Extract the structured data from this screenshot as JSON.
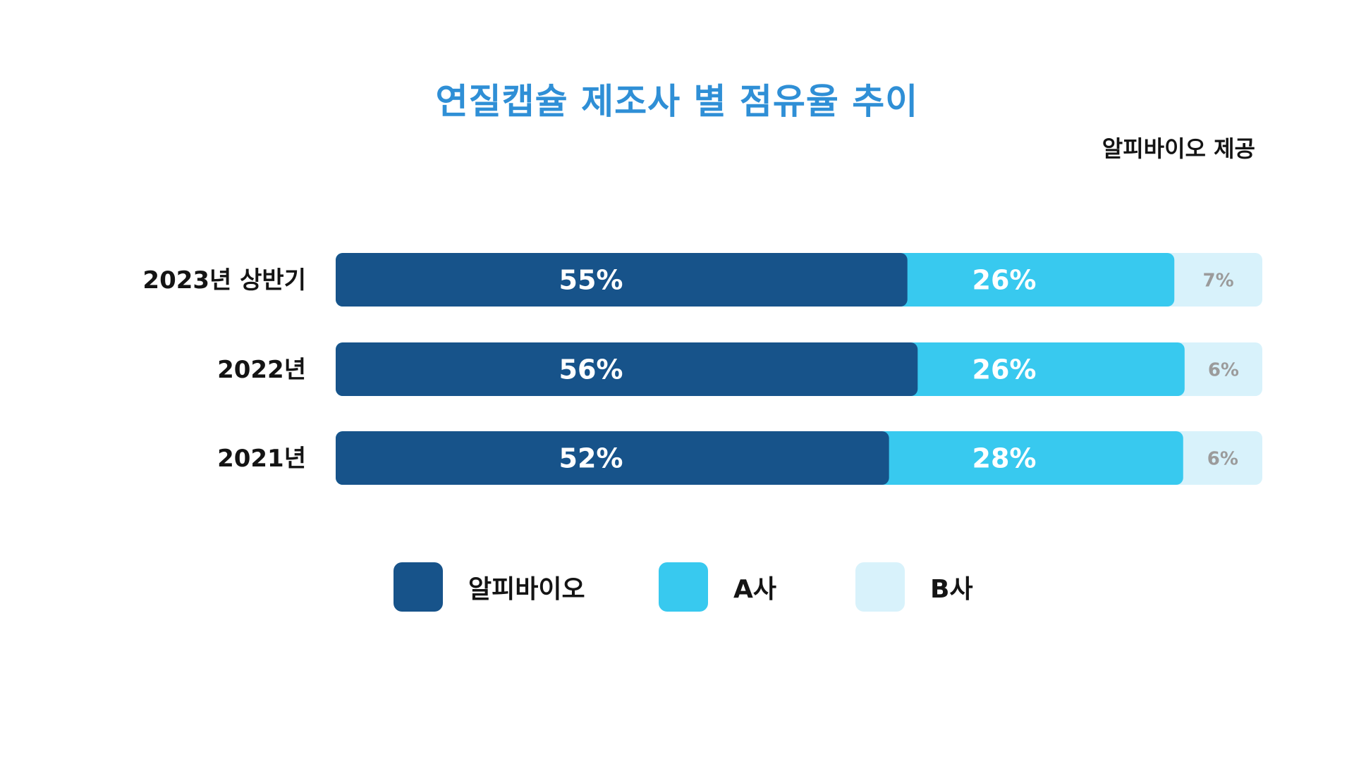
{
  "chart_data": {
    "type": "bar",
    "orientation": "horizontal",
    "stacked": true,
    "title": "연질캡슐 제조사 별 점유율 추이",
    "source_note": "알피바이오 제공",
    "categories": [
      "2023년 상반기",
      "2022년",
      "2021년"
    ],
    "series": [
      {
        "name": "알피바이오",
        "values": [
          55,
          56,
          52
        ],
        "labels": [
          "55%",
          "56%",
          "52%"
        ],
        "color": "#17538a",
        "label_color": "#ffffff"
      },
      {
        "name": "A사",
        "values": [
          26,
          26,
          28
        ],
        "labels": [
          "26%",
          "26%",
          "28%"
        ],
        "color": "#38c9ef",
        "label_color": "#ffffff"
      },
      {
        "name": "B사",
        "values": [
          7,
          6,
          6
        ],
        "labels": [
          "7%",
          "6%",
          "6%"
        ],
        "color": "#d8f2fb",
        "label_color": "#9b9b9b"
      }
    ],
    "legend": {
      "position": "bottom"
    },
    "grid": false
  }
}
